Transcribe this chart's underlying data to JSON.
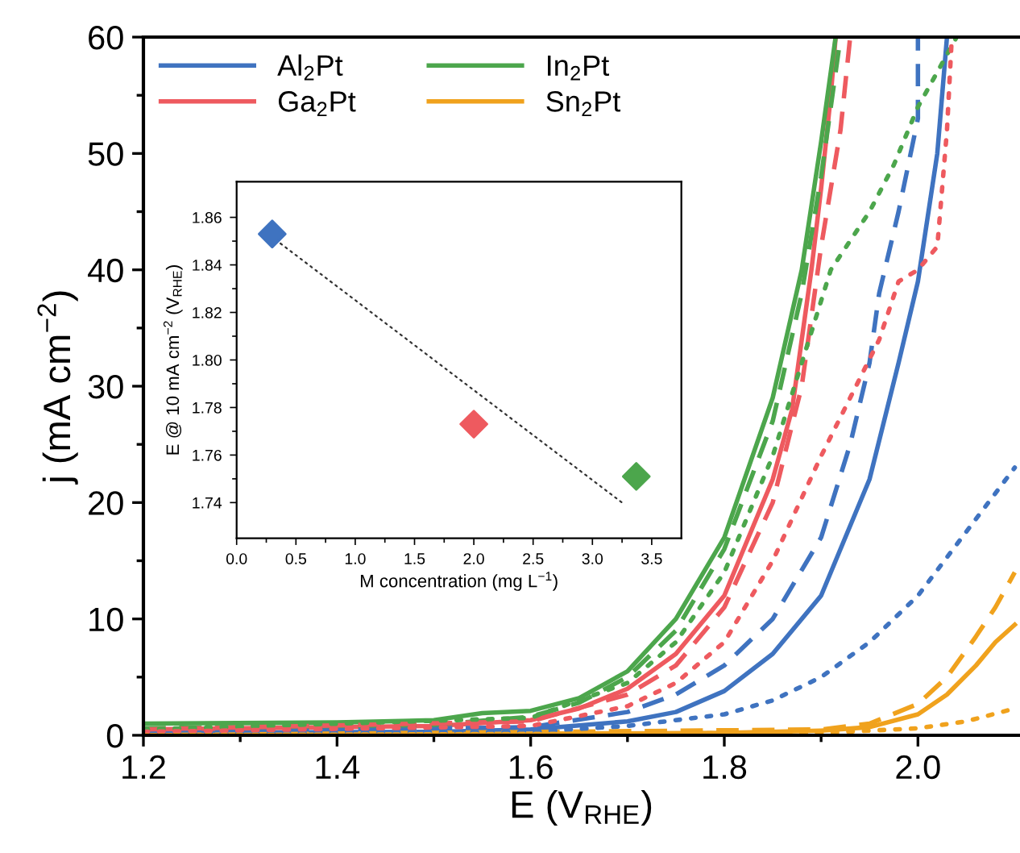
{
  "chart_data": [
    {
      "type": "line",
      "xlabel": "E (V$_{RHE}$)",
      "ylabel": "j (mA cm$^{−2}$)",
      "xlim": [
        1.2,
        2.105
      ],
      "ylim": [
        0,
        60
      ],
      "xticks": [
        1.2,
        1.4,
        1.6,
        1.8,
        {
          "value": 2,
          "label": "2.0"
        }
      ],
      "yticks": [
        0,
        10,
        20,
        30,
        40,
        50,
        60
      ],
      "legend": "top left",
      "grid": false,
      "series": [
        {
          "name": "Al$_{2}$Pt",
          "color": "#3f73c0",
          "line_style": "solid",
          "x": [
            1.2,
            1.5,
            1.6,
            1.7,
            1.75,
            1.8,
            1.85,
            1.9,
            1.95,
            1.98,
            2.0,
            2.02,
            2.03
          ],
          "values": [
            0.2,
            0.3,
            0.5,
            1.2,
            2,
            3.8,
            7,
            12,
            22,
            32,
            39,
            50,
            60
          ]
        },
        {
          "name": "Ga$_{2}$Pt",
          "color": "#ee5a5f",
          "line_style": "solid",
          "x": [
            1.2,
            1.5,
            1.6,
            1.65,
            1.7,
            1.75,
            1.8,
            1.85,
            1.87,
            1.89,
            1.9,
            1.91,
            1.915
          ],
          "values": [
            0.5,
            0.8,
            1.3,
            2.3,
            4,
            7,
            12,
            22,
            28,
            40,
            47,
            55,
            60
          ]
        },
        {
          "name": "In$_{2}$Pt",
          "color": "#4ca64c",
          "line_style": "solid",
          "x": [
            1.2,
            1.4,
            1.5,
            1.55,
            1.6,
            1.65,
            1.7,
            1.75,
            1.8,
            1.85,
            1.88,
            1.9,
            1.915
          ],
          "values": [
            1.0,
            1.1,
            1.3,
            1.9,
            2.1,
            3.2,
            5.5,
            10,
            17,
            29,
            40,
            51,
            60
          ]
        },
        {
          "name": "Sn$_{2}$Pt",
          "color": "#f0a21d",
          "line_style": "solid",
          "x": [
            1.2,
            1.8,
            1.9,
            1.95,
            2.0,
            2.03,
            2.06,
            2.08,
            2.1
          ],
          "values": [
            0,
            0.2,
            0.4,
            0.7,
            1.8,
            3.5,
            6,
            8,
            9.5
          ]
        },
        {
          "color": "#3f73c0",
          "line_style": "dashed",
          "x": [
            1.2,
            1.6,
            1.7,
            1.75,
            1.8,
            1.85,
            1.9,
            1.93,
            1.95,
            1.96,
            1.98,
            2.0,
            2.0
          ],
          "values": [
            0.2,
            0.7,
            2,
            3.5,
            6,
            10,
            17,
            25,
            32,
            38,
            45,
            53,
            60
          ]
        },
        {
          "color": "#4ca64c",
          "line_style": "dashed",
          "x": [
            1.2,
            1.5,
            1.6,
            1.65,
            1.7,
            1.75,
            1.8,
            1.85,
            1.88,
            1.9,
            1.92
          ],
          "values": [
            0.6,
            0.9,
            1.6,
            2.8,
            5,
            9,
            16,
            27,
            38,
            48,
            60
          ]
        },
        {
          "color": "#ee5a5f",
          "line_style": "dashed",
          "x": [
            1.2,
            1.6,
            1.7,
            1.75,
            1.8,
            1.85,
            1.88,
            1.9,
            1.92,
            1.93
          ],
          "values": [
            0.5,
            1.2,
            3.5,
            6,
            11,
            20,
            30,
            42,
            52,
            60
          ]
        },
        {
          "color": "#f0a21d",
          "line_style": "dashed",
          "x": [
            1.2,
            1.9,
            1.95,
            2.0,
            2.03,
            2.06,
            2.08,
            2.1
          ],
          "values": [
            0,
            0.5,
            1,
            2.7,
            5,
            8.5,
            11,
            14
          ]
        },
        {
          "color": "#3f73c0",
          "line_style": "dotted",
          "x": [
            1.2,
            1.6,
            1.7,
            1.8,
            1.85,
            1.9,
            1.95,
            2.0,
            2.05,
            2.1
          ],
          "values": [
            0.1,
            0.3,
            0.8,
            1.8,
            3,
            5,
            8,
            12,
            17.5,
            23
          ]
        },
        {
          "color": "#4ca64c",
          "line_style": "dotted",
          "x": [
            1.2,
            1.6,
            1.7,
            1.75,
            1.8,
            1.85,
            1.91,
            1.95,
            1.975,
            2.0,
            2.04
          ],
          "values": [
            0.5,
            1.5,
            4.5,
            8,
            14,
            24,
            40,
            45,
            49,
            54,
            60
          ]
        },
        {
          "color": "#ee5a5f",
          "line_style": "dotted",
          "x": [
            1.2,
            1.6,
            1.7,
            1.75,
            1.8,
            1.85,
            1.9,
            1.96,
            1.98,
            2.0,
            2.02,
            2.03,
            2.035
          ],
          "values": [
            0.3,
            0.8,
            2.5,
            4.5,
            8,
            15,
            24,
            34,
            39,
            40,
            42,
            52,
            60
          ]
        },
        {
          "color": "#f0a21d",
          "line_style": "dotted",
          "x": [
            1.2,
            1.9,
            2.0,
            2.05,
            2.1
          ],
          "values": [
            0,
            0.2,
            0.6,
            1.2,
            2.3
          ]
        }
      ]
    },
    {
      "type": "scatter",
      "xlabel": "M concentration (mg L$^{−1}$)",
      "ylabel": "E @ 10 mA cm$^{−2}$ (V$_{RHE}$)",
      "xlim": [
        0,
        3.75
      ],
      "ylim": [
        1.725,
        1.875
      ],
      "xticks": [
        {
          "value": 0,
          "label": "0.0"
        },
        0.5,
        {
          "value": 1,
          "label": "1.0"
        },
        1.5,
        {
          "value": 2,
          "label": "2.0"
        },
        2.5,
        {
          "value": 3,
          "label": "3.0"
        },
        3.5
      ],
      "yticks": [
        1.74,
        1.76,
        1.78,
        {
          "value": 1.8,
          "label": "1.80"
        },
        1.82,
        1.84,
        1.86
      ],
      "grid": false,
      "marker": "diamond",
      "series": [
        {
          "x": [
            0.3,
            2.0,
            3.37
          ],
          "values": [
            1.853,
            1.773,
            1.751
          ],
          "colors": [
            "#3f73c0",
            "#ee5a5f",
            "#4ca64c"
          ]
        },
        {
          "type": "line",
          "x": [
            0.37,
            3.25
          ],
          "values": [
            1.849,
            1.74
          ],
          "color": "#333333",
          "line_style": "dotted",
          "marker": "none"
        }
      ]
    }
  ]
}
